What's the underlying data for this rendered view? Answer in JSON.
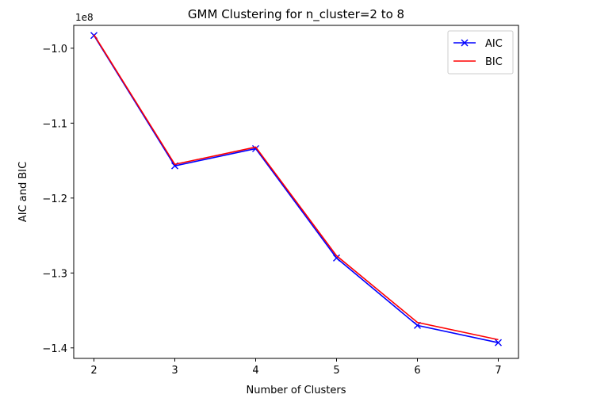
{
  "chart_data": {
    "type": "line",
    "title": "GMM Clustering for n_cluster=2 to 8",
    "xlabel": "Number of Clusters",
    "ylabel": "AIC and BIC",
    "offset_label": "1e8",
    "x": [
      2,
      3,
      4,
      5,
      6,
      7
    ],
    "x_ticks": [
      2,
      3,
      4,
      5,
      6,
      7
    ],
    "x_tick_labels": [
      "2",
      "3",
      "4",
      "5",
      "6",
      "7"
    ],
    "y_ticks": [
      -1.4,
      -1.3,
      -1.2,
      -1.1,
      -1.0
    ],
    "y_tick_labels": [
      "−1.4",
      "−1.3",
      "−1.2",
      "−1.1",
      "−1.0"
    ],
    "xlim": [
      1.75,
      7.25
    ],
    "ylim": [
      -1.414,
      -0.9695
    ],
    "grid": false,
    "legend_position": "top-right",
    "series": [
      {
        "name": "AIC",
        "color": "#0000ff",
        "marker": "x",
        "values": [
          -0.983,
          -1.157,
          -1.134,
          -1.28,
          -1.37,
          -1.393
        ]
      },
      {
        "name": "BIC",
        "color": "#ff0000",
        "marker": "none",
        "values": [
          -0.982,
          -1.155,
          -1.132,
          -1.277,
          -1.366,
          -1.389
        ]
      }
    ]
  }
}
